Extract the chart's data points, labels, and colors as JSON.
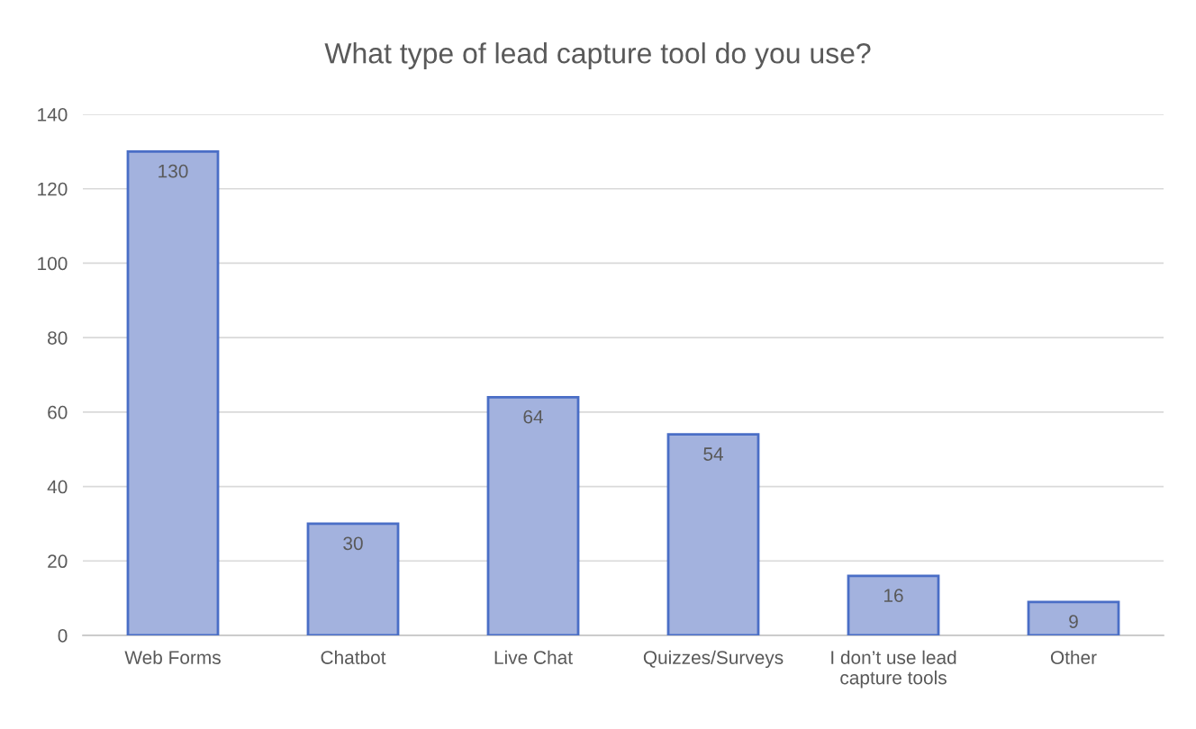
{
  "chart_data": {
    "type": "bar",
    "title": "What type of lead capture tool do you use?",
    "categories": [
      "Web Forms",
      "Chatbot",
      "Live Chat",
      "Quizzes/Surveys",
      "I don’t use lead capture tools",
      "Other"
    ],
    "values": [
      130,
      30,
      64,
      54,
      16,
      9
    ],
    "color": "#a3b2de",
    "ylim": [
      0,
      140
    ],
    "yticks": [
      0,
      20,
      40,
      60,
      80,
      100,
      120,
      140
    ],
    "grid": "y",
    "data_labels": true
  }
}
